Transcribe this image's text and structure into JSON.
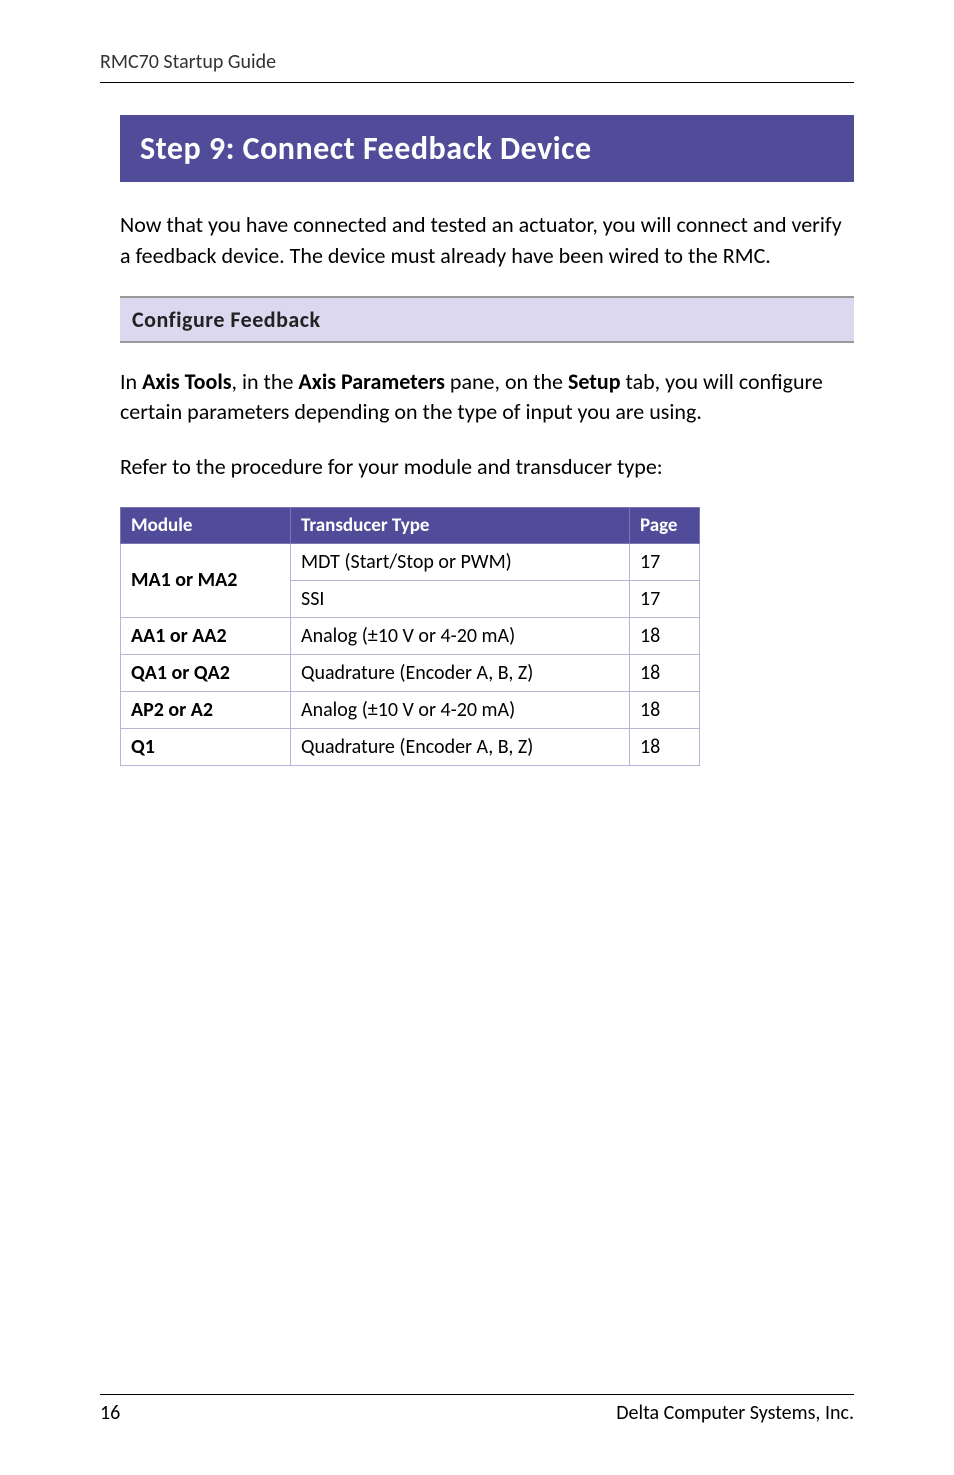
{
  "header": {
    "doc_title": "RMC70 Startup Guide"
  },
  "step": {
    "title": "Step 9: Connect Feedback Device"
  },
  "intro_text": "Now that you have connected and tested an actuator, you will connect and verify a feedback device. The device must already have been wired to the RMC.",
  "subheader": {
    "title": "Configure Feedback"
  },
  "config_text": {
    "prefix": "In ",
    "b1": "Axis Tools",
    "mid1": ", in the ",
    "b2": "Axis Parameters",
    "mid2": " pane, on the ",
    "b3": "Setup",
    "suffix": " tab, you will configure certain parameters depending on the type of input you are using."
  },
  "refer_text": "Refer to the procedure for your module and transducer type:",
  "table": {
    "columns": [
      "Module",
      "Transducer Type",
      "Page"
    ],
    "header_bg": "#514c99",
    "header_fg": "#ffffff",
    "border_color": "#b8b4d6",
    "rows": [
      {
        "module": "MA1 or MA2",
        "type": "MDT (Start/Stop or PWM)",
        "page": "17",
        "rowspan": 2
      },
      {
        "module": "",
        "type": "SSI",
        "page": "17"
      },
      {
        "module": "AA1 or AA2",
        "type": "Analog (±10 V or 4-20 mA)",
        "page": "18"
      },
      {
        "module": "QA1 or QA2",
        "type": "Quadrature (Encoder A, B, Z)",
        "page": "18"
      },
      {
        "module": "AP2 or A2",
        "type": "Analog (±10 V or 4-20 mA)",
        "page": "18"
      },
      {
        "module": "Q1",
        "type": "Quadrature (Encoder A, B, Z)",
        "page": "18"
      }
    ]
  },
  "footer": {
    "page_number": "16",
    "company": "Delta Computer Systems, Inc."
  }
}
